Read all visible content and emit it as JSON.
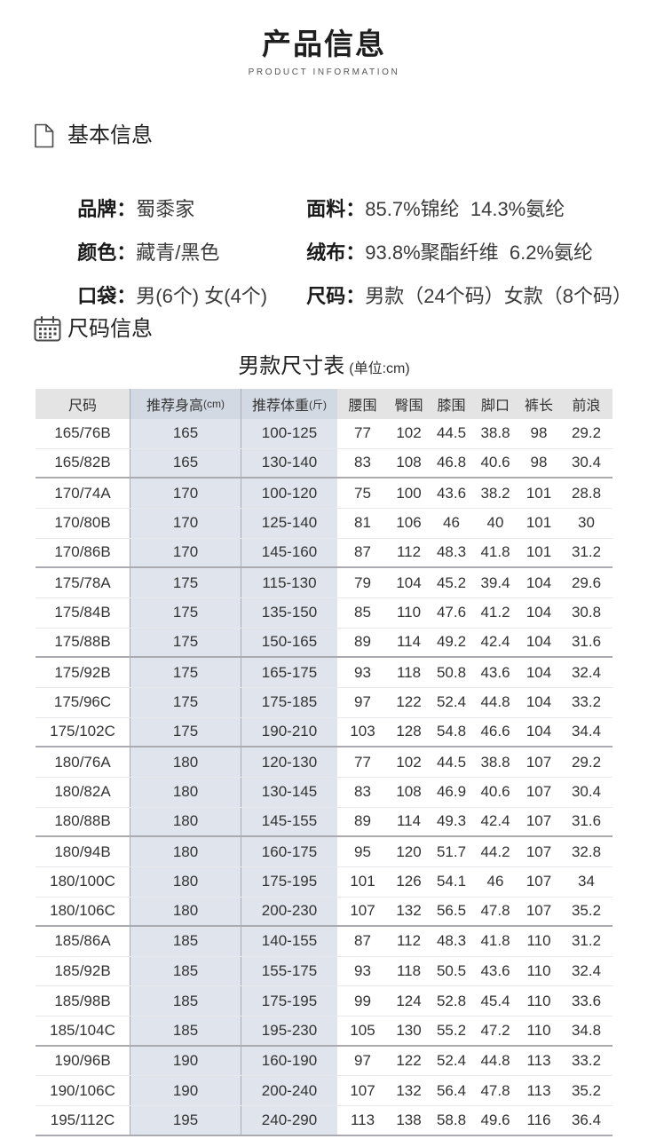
{
  "header": {
    "title": "产品信息",
    "subtitle": "PRODUCT INFORMATION"
  },
  "basic_info": {
    "heading": "基本信息",
    "icon": "document-icon",
    "items": [
      {
        "label": "品牌：",
        "value": "蜀黍家"
      },
      {
        "label": "面料：",
        "value": "85.7%锦纶  14.3%氨纶"
      },
      {
        "label": "颜色：",
        "value": "藏青/黑色"
      },
      {
        "label": "绒布：",
        "value": "93.8%聚酯纤维  6.2%氨纶"
      },
      {
        "label": "口袋：",
        "value": "男(6个) 女(4个)"
      },
      {
        "label": "尺码：",
        "value": "男款（24个码）女款（8个码）"
      }
    ]
  },
  "size_info": {
    "heading": "尺码信息",
    "icon": "calendar-icon",
    "table_title": "男款尺寸表",
    "table_unit": "(单位:cm)",
    "columns": [
      {
        "label": "尺码"
      },
      {
        "label": "推荐身高",
        "unit": "(cm)"
      },
      {
        "label": "推荐体重",
        "unit": "(斤)"
      },
      {
        "label": "腰围"
      },
      {
        "label": "臀围"
      },
      {
        "label": "膝围"
      },
      {
        "label": "脚口"
      },
      {
        "label": "裤长"
      },
      {
        "label": "前浪"
      }
    ],
    "row_groups": [
      [
        [
          "165/76B",
          "165",
          "100-125",
          "77",
          "102",
          "44.5",
          "38.8",
          "98",
          "29.2"
        ],
        [
          "165/82B",
          "165",
          "130-140",
          "83",
          "108",
          "46.8",
          "40.6",
          "98",
          "30.4"
        ]
      ],
      [
        [
          "170/74A",
          "170",
          "100-120",
          "75",
          "100",
          "43.6",
          "38.2",
          "101",
          "28.8"
        ],
        [
          "170/80B",
          "170",
          "125-140",
          "81",
          "106",
          "46",
          "40",
          "101",
          "30"
        ],
        [
          "170/86B",
          "170",
          "145-160",
          "87",
          "112",
          "48.3",
          "41.8",
          "101",
          "31.2"
        ]
      ],
      [
        [
          "175/78A",
          "175",
          "115-130",
          "79",
          "104",
          "45.2",
          "39.4",
          "104",
          "29.6"
        ],
        [
          "175/84B",
          "175",
          "135-150",
          "85",
          "110",
          "47.6",
          "41.2",
          "104",
          "30.8"
        ],
        [
          "175/88B",
          "175",
          "150-165",
          "89",
          "114",
          "49.2",
          "42.4",
          "104",
          "31.6"
        ]
      ],
      [
        [
          "175/92B",
          "175",
          "165-175",
          "93",
          "118",
          "50.8",
          "43.6",
          "104",
          "32.4"
        ],
        [
          "175/96C",
          "175",
          "175-185",
          "97",
          "122",
          "52.4",
          "44.8",
          "104",
          "33.2"
        ],
        [
          "175/102C",
          "175",
          "190-210",
          "103",
          "128",
          "54.8",
          "46.6",
          "104",
          "34.4"
        ]
      ],
      [
        [
          "180/76A",
          "180",
          "120-130",
          "77",
          "102",
          "44.5",
          "38.8",
          "107",
          "29.2"
        ],
        [
          "180/82A",
          "180",
          "130-145",
          "83",
          "108",
          "46.9",
          "40.6",
          "107",
          "30.4"
        ],
        [
          "180/88B",
          "180",
          "145-155",
          "89",
          "114",
          "49.3",
          "42.4",
          "107",
          "31.6"
        ]
      ],
      [
        [
          "180/94B",
          "180",
          "160-175",
          "95",
          "120",
          "51.7",
          "44.2",
          "107",
          "32.8"
        ],
        [
          "180/100C",
          "180",
          "175-195",
          "101",
          "126",
          "54.1",
          "46",
          "107",
          "34"
        ],
        [
          "180/106C",
          "180",
          "200-230",
          "107",
          "132",
          "56.5",
          "47.8",
          "107",
          "35.2"
        ]
      ],
      [
        [
          "185/86A",
          "185",
          "140-155",
          "87",
          "112",
          "48.3",
          "41.8",
          "110",
          "31.2"
        ],
        [
          "185/92B",
          "185",
          "155-175",
          "93",
          "118",
          "50.5",
          "43.6",
          "110",
          "32.4"
        ],
        [
          "185/98B",
          "185",
          "175-195",
          "99",
          "124",
          "52.8",
          "45.4",
          "110",
          "33.6"
        ],
        [
          "185/104C",
          "185",
          "195-230",
          "105",
          "130",
          "55.2",
          "47.2",
          "110",
          "34.8"
        ]
      ],
      [
        [
          "190/96B",
          "190",
          "160-190",
          "97",
          "122",
          "52.4",
          "44.8",
          "113",
          "33.2"
        ],
        [
          "190/106C",
          "190",
          "200-240",
          "107",
          "132",
          "56.4",
          "47.8",
          "113",
          "35.2"
        ],
        [
          "195/112C",
          "195",
          "240-290",
          "113",
          "138",
          "58.8",
          "49.6",
          "116",
          "36.4"
        ]
      ]
    ]
  },
  "theme": {
    "header_bg": "#e4e4e4",
    "highlight_header_bg": "#d3d9e3",
    "highlight_column_bg": "#dfe4ed",
    "group_divider": "#a9abb0"
  }
}
